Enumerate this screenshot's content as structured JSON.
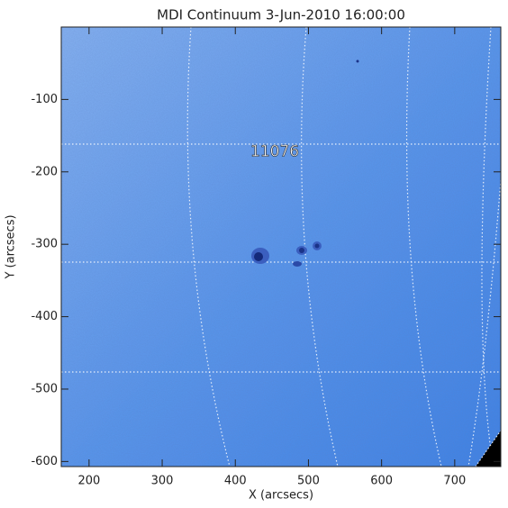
{
  "chart_data": {
    "type": "image",
    "title": "MDI Continuum 3-Jun-2010 16:00:00",
    "x_label": "X (arcsecs)",
    "y_label": "Y (arcsecs)",
    "xlim": [
      162,
      763
    ],
    "ylim": [
      -607,
      0
    ],
    "xticks": [
      200,
      300,
      400,
      500,
      600,
      700
    ],
    "yticks": [
      -100,
      -200,
      -300,
      -400,
      -500,
      -600
    ],
    "annotations": [
      {
        "text": "11076",
        "x": 454,
        "y": -172
      }
    ]
  }
}
